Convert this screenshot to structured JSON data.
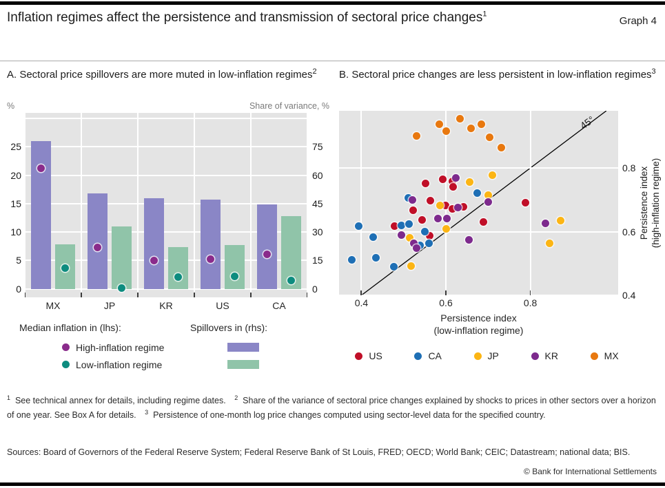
{
  "header": {
    "title": "Inflation regimes affect the persistence and transmission of sectoral price changes",
    "title_sup": "1",
    "graph_label": "Graph 4"
  },
  "panel_a": {
    "title": "A. Sectoral price spillovers are more muted in low-inflation regimes",
    "title_sup": "2",
    "legend": {
      "lhs_header": "Median inflation in (lhs):",
      "rhs_header": "Spillovers in (rhs):",
      "items": [
        "High-inflation regime",
        "Low-inflation regime"
      ]
    }
  },
  "panel_b": {
    "title": "B. Sectoral price changes are less persistent in low-inflation regimes",
    "title_sup": "3"
  },
  "chart_data": [
    {
      "type": "bar",
      "title": "A. Sectoral price spillovers are more muted in low-inflation regimes",
      "categories": [
        "MX",
        "JP",
        "KR",
        "US",
        "CA"
      ],
      "series": [
        {
          "name": "Spillovers high-inflation regime",
          "axis": "rhs",
          "kind": "bar",
          "color": "#8a86c6",
          "values": [
            78,
            50.5,
            48,
            47,
            44.5
          ]
        },
        {
          "name": "Spillovers low-inflation regime",
          "axis": "rhs",
          "kind": "bar",
          "color": "#90c4a9",
          "values": [
            23.5,
            33,
            22,
            23,
            38.5
          ]
        },
        {
          "name": "Median inflation high-inflation regime",
          "axis": "lhs",
          "kind": "dot",
          "color": "#8a2b8b",
          "values": [
            21.3,
            7.3,
            5.0,
            5.2,
            6.1
          ]
        },
        {
          "name": "Median inflation low-inflation regime",
          "axis": "lhs",
          "kind": "dot",
          "color": "#0d8c7f",
          "values": [
            3.7,
            0.1,
            2.1,
            2.2,
            1.5
          ]
        }
      ],
      "lhs": {
        "label": "%",
        "ticks": [
          0,
          5,
          10,
          15,
          20,
          25
        ],
        "gridlines": [
          0,
          5,
          10,
          15,
          20,
          25,
          30
        ],
        "min": -1.5,
        "max": 31
      },
      "rhs": {
        "label": "Share of variance, %",
        "ticks": [
          0,
          15,
          30,
          45,
          60,
          75
        ]
      },
      "rhs_per_lhs": 3,
      "grid": true,
      "plot_bg": "#e4e4e4"
    },
    {
      "type": "scatter",
      "title": "B. Sectoral price changes are less persistent in low-inflation regimes",
      "xlabel": [
        "Persistence index",
        "(low-inflation regime)"
      ],
      "ylabel": [
        "Persistence index",
        "(high-inflation regime)"
      ],
      "x_ticks": [
        0.4,
        0.6,
        0.8
      ],
      "y_ticks": [
        0.4,
        0.6,
        0.8
      ],
      "xlim": [
        0.347,
        1.008
      ],
      "ylim": [
        0.4,
        0.98
      ],
      "diagonal": {
        "label": "45°",
        "from": 0.4,
        "to": 0.98,
        "label_x": 0.934,
        "label_y": 0.944
      },
      "legend_position": "bottom",
      "grid": true,
      "series": [
        {
          "name": "US",
          "color": "#c00f28",
          "points": [
            [
              0.478,
              0.618
            ],
            [
              0.523,
              0.667
            ],
            [
              0.544,
              0.636
            ],
            [
              0.552,
              0.752
            ],
            [
              0.562,
              0.588
            ],
            [
              0.563,
              0.698
            ],
            [
              0.593,
              0.765
            ],
            [
              0.599,
              0.682
            ],
            [
              0.615,
              0.671
            ],
            [
              0.616,
              0.759
            ],
            [
              0.617,
              0.74
            ],
            [
              0.642,
              0.679
            ],
            [
              0.689,
              0.631
            ],
            [
              0.789,
              0.691
            ]
          ]
        },
        {
          "name": "CA",
          "color": "#1e6fb5",
          "points": [
            [
              0.377,
              0.511
            ],
            [
              0.394,
              0.618
            ],
            [
              0.427,
              0.583
            ],
            [
              0.434,
              0.518
            ],
            [
              0.477,
              0.489
            ],
            [
              0.494,
              0.62
            ],
            [
              0.511,
              0.707
            ],
            [
              0.513,
              0.624
            ],
            [
              0.539,
              0.556
            ],
            [
              0.55,
              0.6
            ],
            [
              0.56,
              0.563
            ],
            [
              0.674,
              0.721
            ]
          ]
        },
        {
          "name": "JP",
          "color": "#fcb514",
          "points": [
            [
              0.514,
              0.581
            ],
            [
              0.518,
              0.492
            ],
            [
              0.586,
              0.682
            ],
            [
              0.601,
              0.608
            ],
            [
              0.657,
              0.755
            ],
            [
              0.7,
              0.716
            ],
            [
              0.71,
              0.777
            ],
            [
              0.846,
              0.563
            ],
            [
              0.872,
              0.635
            ]
          ]
        },
        {
          "name": "KR",
          "color": "#7d2a8d",
          "points": [
            [
              0.495,
              0.589
            ],
            [
              0.521,
              0.7
            ],
            [
              0.524,
              0.563
            ],
            [
              0.531,
              0.549
            ],
            [
              0.582,
              0.641
            ],
            [
              0.603,
              0.642
            ],
            [
              0.623,
              0.769
            ],
            [
              0.629,
              0.677
            ],
            [
              0.654,
              0.574
            ],
            [
              0.701,
              0.694
            ],
            [
              0.835,
              0.626
            ]
          ]
        },
        {
          "name": "MX",
          "color": "#e8780f",
          "points": [
            [
              0.53,
              0.9
            ],
            [
              0.585,
              0.938
            ],
            [
              0.6,
              0.916
            ],
            [
              0.633,
              0.956
            ],
            [
              0.66,
              0.925
            ],
            [
              0.684,
              0.938
            ],
            [
              0.703,
              0.896
            ],
            [
              0.732,
              0.864
            ]
          ]
        }
      ]
    }
  ],
  "footnotes": [
    {
      "sup": "1",
      "text": "See technical annex for details, including regime dates."
    },
    {
      "sup": "2",
      "text": "Share of the variance of sectoral price changes explained by shocks to prices in other sectors over a horizon of one year. See Box A for details."
    },
    {
      "sup": "3",
      "text": "Persistence of one-month log price changes computed using sector-level data for the specified country."
    }
  ],
  "sources": "Sources: Board of Governors of the Federal Reserve System; Federal Reserve Bank of St Louis, FRED; OECD; World Bank; CEIC; Datastream; national data; BIS.",
  "copyright": "© Bank for International Settlements"
}
